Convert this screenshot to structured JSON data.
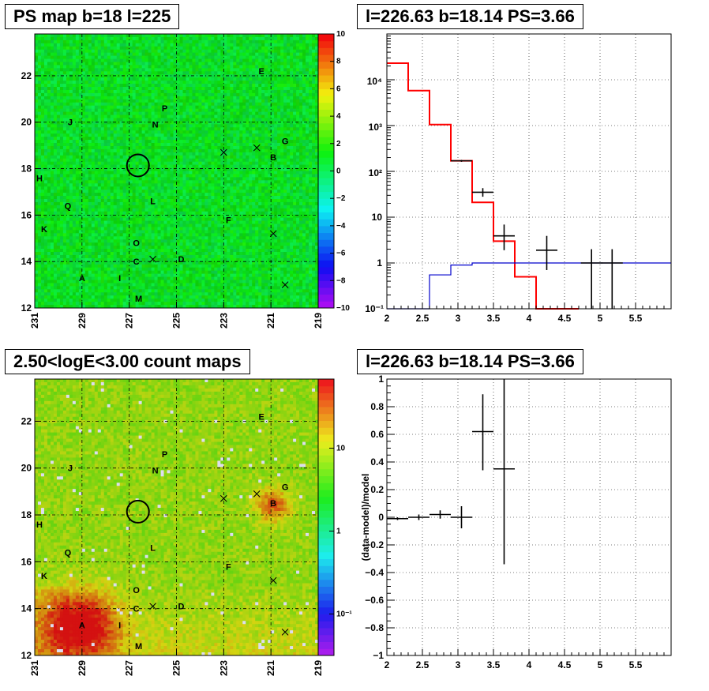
{
  "panels": {
    "tl_title": "PS map b=18 l=225",
    "tr_title": "l=226.63 b=18.14 PS=3.66",
    "bl_title": "2.50<logE<3.00 count maps",
    "br_title": "l=226.63 b=18.14 PS=3.66"
  },
  "map": {
    "x_ticks": [
      "231",
      "229",
      "227",
      "225",
      "223",
      "221",
      "219"
    ],
    "y_ticks": [
      "12",
      "14",
      "16",
      "18",
      "20",
      "22"
    ],
    "sources": [
      {
        "id": "A",
        "l": 229.0,
        "b": 13.3
      },
      {
        "id": "B",
        "l": 220.9,
        "b": 18.5
      },
      {
        "id": "C",
        "l": 226.7,
        "b": 14.0
      },
      {
        "id": "D",
        "l": 224.8,
        "b": 14.1
      },
      {
        "id": "E",
        "l": 221.4,
        "b": 22.2
      },
      {
        "id": "F",
        "l": 222.8,
        "b": 15.8
      },
      {
        "id": "G",
        "l": 220.4,
        "b": 19.2
      },
      {
        "id": "H",
        "l": 230.8,
        "b": 17.6
      },
      {
        "id": "I",
        "l": 227.4,
        "b": 13.3
      },
      {
        "id": "J",
        "l": 229.5,
        "b": 20.0
      },
      {
        "id": "K",
        "l": 230.6,
        "b": 15.4
      },
      {
        "id": "L",
        "l": 226.0,
        "b": 16.6
      },
      {
        "id": "M",
        "l": 226.6,
        "b": 12.4
      },
      {
        "id": "N",
        "l": 225.9,
        "b": 19.9
      },
      {
        "id": "O",
        "l": 226.7,
        "b": 14.8
      },
      {
        "id": "P",
        "l": 225.5,
        "b": 20.6
      },
      {
        "id": "Q",
        "l": 229.6,
        "b": 16.4
      }
    ],
    "crosses": [
      {
        "l": 223.0,
        "b": 18.7
      },
      {
        "l": 221.6,
        "b": 18.9
      },
      {
        "l": 226.0,
        "b": 14.1
      },
      {
        "l": 220.9,
        "b": 15.2
      },
      {
        "l": 220.4,
        "b": 13.0
      }
    ],
    "circle_center": {
      "l": 226.63,
      "b": 18.14
    }
  },
  "colorbar_ps": {
    "ticks": [
      "10",
      "8",
      "6",
      "4",
      "2",
      "0",
      "−2",
      "−4",
      "−6",
      "−8",
      "−10"
    ]
  },
  "colorbar_counts": {
    "ticks": [
      "10",
      "1",
      "10⁻¹"
    ]
  },
  "chart_data": [
    {
      "type": "line",
      "title": "l=226.63 b=18.14 PS=3.66",
      "xlabel": "",
      "ylabel": "",
      "xlim": [
        2,
        6
      ],
      "ylim": [
        0.1,
        100000
      ],
      "yscale": "log",
      "x_ticks": [
        "2",
        "2.5",
        "3",
        "3.5",
        "4",
        "4.5",
        "5",
        "5.5"
      ],
      "y_ticks": [
        "10⁻¹",
        "1",
        "10",
        "10²",
        "10³",
        "10⁴"
      ],
      "grid": true,
      "series": [
        {
          "kind": "step",
          "color": "#ff0000",
          "edges": [
            2.0,
            2.3,
            2.6,
            2.9,
            3.2,
            3.5,
            3.8,
            4.1,
            4.4,
            4.7
          ],
          "values": [
            23000,
            5800,
            1050,
            170,
            21,
            3.0,
            0.5,
            0.1,
            0.04
          ]
        },
        {
          "kind": "step",
          "color": "#0000cc",
          "edges": [
            2.0,
            2.3,
            2.6,
            2.9,
            3.2,
            3.5,
            6.0
          ],
          "values": [
            0.02,
            0.1,
            0.55,
            0.9,
            1.0,
            1.0
          ]
        },
        {
          "kind": "points",
          "color": "#000000",
          "x": [
            3.05,
            3.35,
            3.65,
            4.25,
            4.88,
            5.17
          ],
          "y": [
            170,
            35,
            3.9,
            1.9,
            1.0,
            1.0
          ],
          "xerr": [
            0.15,
            0.15,
            0.15,
            0.15,
            0.15,
            0.15
          ],
          "yerr_lo": [
            8,
            7,
            2.0,
            1.2,
            0.99,
            0.99
          ],
          "yerr_hi": [
            8,
            8,
            3.0,
            2.0,
            1.0,
            1.0
          ]
        }
      ]
    },
    {
      "type": "scatter",
      "title": "l=226.63 b=18.14 PS=3.66",
      "xlabel": "",
      "ylabel": "(data-model)/model",
      "xlim": [
        2,
        6
      ],
      "ylim": [
        -1,
        1
      ],
      "x_ticks": [
        "2",
        "2.5",
        "3",
        "3.5",
        "4",
        "4.5",
        "5",
        "5.5"
      ],
      "y_ticks": [
        "−1",
        "−0.8",
        "−0.6",
        "−0.4",
        "−0.2",
        "0",
        "0.2",
        "0.4",
        "0.6",
        "0.8",
        "1"
      ],
      "grid": true,
      "series": [
        {
          "x": [
            2.15,
            2.45,
            2.75,
            3.05,
            3.35,
            3.65
          ],
          "y": [
            -0.01,
            0.0,
            0.02,
            0.0,
            0.62,
            0.35
          ],
          "xerr": [
            0.15,
            0.15,
            0.15,
            0.15,
            0.15,
            0.15
          ],
          "yerr_lo": [
            0.01,
            0.02,
            0.03,
            0.08,
            0.28,
            0.69
          ],
          "yerr_hi": [
            0.01,
            0.02,
            0.03,
            0.08,
            0.27,
            0.65
          ]
        }
      ]
    }
  ]
}
